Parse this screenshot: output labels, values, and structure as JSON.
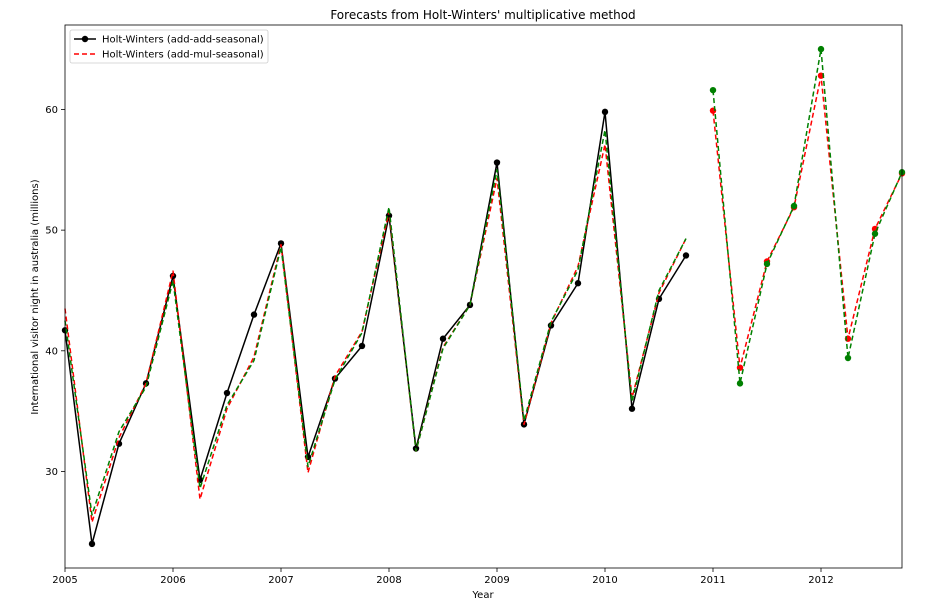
{
  "chart_data": {
    "type": "line",
    "title": "Forecasts from Holt-Winters' multiplicative method",
    "xlabel": "Year",
    "ylabel": "International visitor night in australia (millions)",
    "xlim": [
      2005.0,
      2012.75
    ],
    "ylim": [
      22,
      67
    ],
    "x_ticks": [
      2005,
      2006,
      2007,
      2008,
      2009,
      2010,
      2011,
      2012
    ],
    "y_ticks": [
      30,
      40,
      50,
      60
    ],
    "grid": false,
    "legend_position": "top-left",
    "legend": [
      {
        "label": "Holt-Winters (add-add-seasonal)",
        "color": "#000000",
        "style": "solid-marker"
      },
      {
        "label": "Holt-Winters (add-mul-seasonal)",
        "color": "#ff0000",
        "style": "dashed"
      }
    ],
    "series": [
      {
        "role": "observed",
        "color": "#000000",
        "line": "solid",
        "markers": true,
        "x": [
          2005.0,
          2005.25,
          2005.5,
          2005.75,
          2006.0,
          2006.25,
          2006.5,
          2006.75,
          2007.0,
          2007.25,
          2007.5,
          2007.75,
          2008.0,
          2008.25,
          2008.5,
          2008.75,
          2009.0,
          2009.25,
          2009.5,
          2009.75,
          2010.0,
          2010.25,
          2010.5,
          2010.75
        ],
        "y": [
          41.7,
          24.0,
          32.3,
          37.3,
          46.2,
          29.3,
          36.5,
          43.0,
          48.9,
          31.2,
          37.7,
          40.4,
          51.2,
          31.9,
          41.0,
          43.8,
          55.6,
          33.9,
          42.1,
          45.6,
          59.8,
          35.2,
          44.3,
          47.9
        ]
      },
      {
        "role": "fitted-mul",
        "color": "#ff0000",
        "line": "dashed",
        "markers": false,
        "x": [
          2005.0,
          2005.25,
          2005.5,
          2005.75,
          2006.0,
          2006.25,
          2006.5,
          2006.75,
          2007.0,
          2007.25,
          2007.5,
          2007.75,
          2008.0,
          2008.25,
          2008.5,
          2008.75,
          2009.0,
          2009.25,
          2009.5,
          2009.75,
          2010.0,
          2010.25,
          2010.5,
          2010.75
        ],
        "y": [
          43.5,
          25.8,
          32.8,
          37.3,
          46.6,
          27.7,
          35.2,
          39.5,
          48.8,
          29.9,
          37.9,
          41.6,
          51.5,
          31.7,
          40.3,
          43.8,
          54.3,
          33.9,
          42.3,
          47.0,
          57.1,
          36.1,
          44.8,
          49.3
        ]
      },
      {
        "role": "fitted-add",
        "color": "#008000",
        "line": "dashed",
        "markers": false,
        "x": [
          2005.0,
          2005.25,
          2005.5,
          2005.75,
          2006.0,
          2006.25,
          2006.5,
          2006.75,
          2007.0,
          2007.25,
          2007.5,
          2007.75,
          2008.0,
          2008.25,
          2008.5,
          2008.75,
          2009.0,
          2009.25,
          2009.5,
          2009.75,
          2010.0,
          2010.25,
          2010.5,
          2010.75
        ],
        "y": [
          42.5,
          26.4,
          33.3,
          37.0,
          45.8,
          28.6,
          35.5,
          39.2,
          48.6,
          30.4,
          37.6,
          41.5,
          51.9,
          31.7,
          40.2,
          43.8,
          55.0,
          34.2,
          42.4,
          46.7,
          58.3,
          35.8,
          45.0,
          49.3
        ]
      },
      {
        "role": "forecast-mul",
        "color": "#ff0000",
        "line": "dashed",
        "markers": true,
        "x": [
          2011.0,
          2011.25,
          2011.5,
          2011.75,
          2012.0,
          2012.25,
          2012.5,
          2012.75
        ],
        "y": [
          59.9,
          38.6,
          47.4,
          51.9,
          62.8,
          41.0,
          50.1,
          54.7
        ]
      },
      {
        "role": "forecast-add",
        "color": "#008000",
        "line": "dashed",
        "markers": true,
        "x": [
          2011.0,
          2011.25,
          2011.5,
          2011.75,
          2012.0,
          2012.25,
          2012.5,
          2012.75
        ],
        "y": [
          61.6,
          37.3,
          47.2,
          52.0,
          65.0,
          39.4,
          49.7,
          54.8
        ]
      }
    ]
  }
}
